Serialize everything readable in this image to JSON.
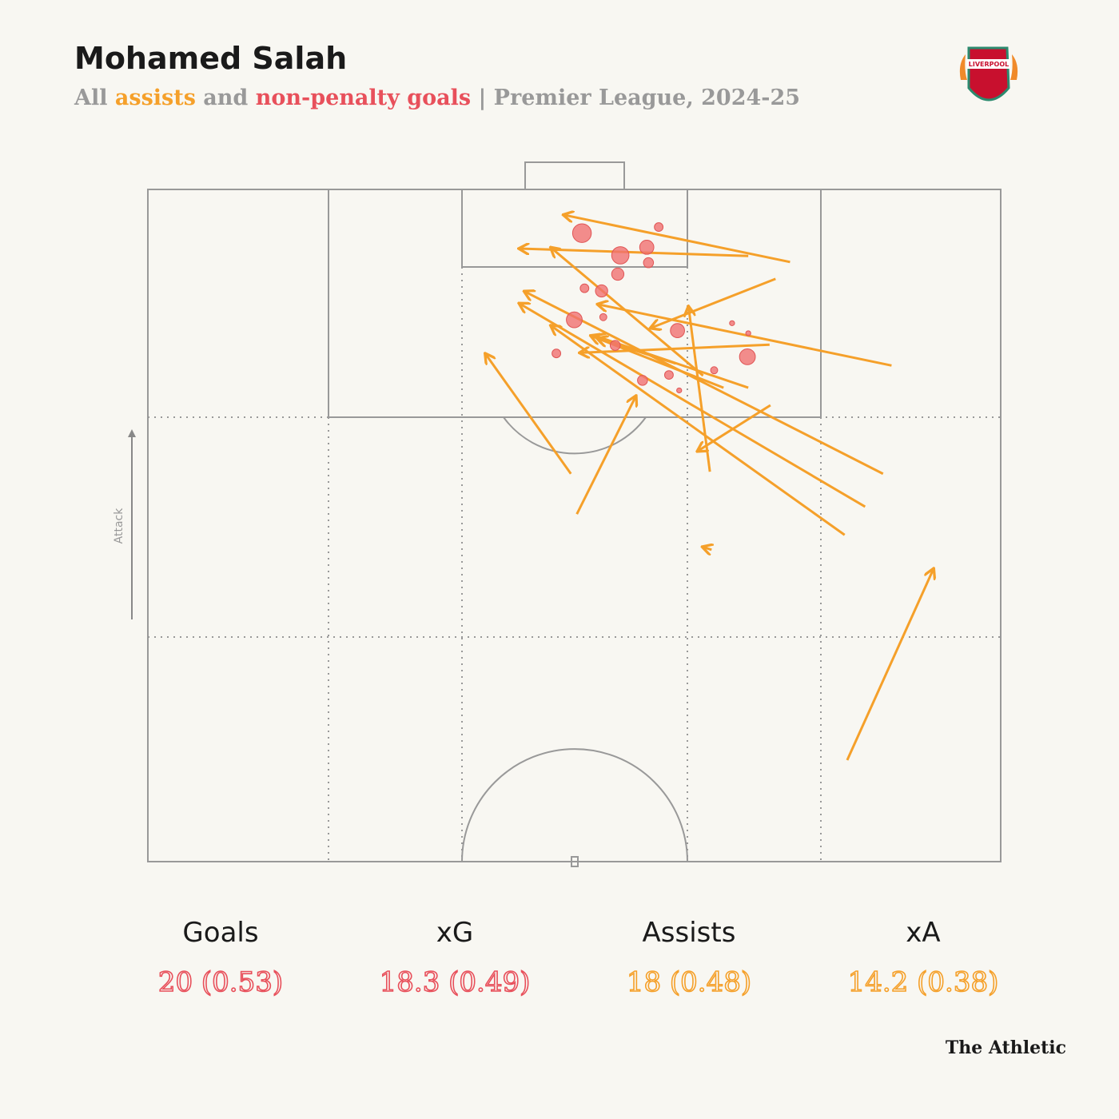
{
  "title": "Mohamed Salah",
  "subtitle": [
    "All ",
    "assists",
    " and ",
    "non-penalty goals",
    " | Premier League, 2024-25"
  ],
  "crest": "LIVERPOOL",
  "attack_label": "Attack",
  "brand": "The Athletic",
  "stats": [
    {
      "label": "Goals",
      "value": "20 (0.53)",
      "color": "#e8505b"
    },
    {
      "label": "xG",
      "value": "18.3 (0.49)",
      "color": "#e8505b"
    },
    {
      "label": "Assists",
      "value": "18 (0.48)",
      "color": "#f5a02a"
    },
    {
      "label": "xA",
      "value": "14.2 (0.38)",
      "color": "#f5a02a"
    }
  ],
  "chart_data": {
    "type": "pitch",
    "xlim": [
      0,
      100
    ],
    "ylim": [
      0,
      100
    ],
    "goal_color": "#f07070",
    "assist_color": "#f5a02a",
    "goals": [
      {
        "x": 50.9,
        "y": 6.5,
        "xg": 0.7
      },
      {
        "x": 59.9,
        "y": 5.6,
        "xg": 0.15
      },
      {
        "x": 58.5,
        "y": 8.6,
        "xg": 0.4
      },
      {
        "x": 55.4,
        "y": 9.8,
        "xg": 0.6
      },
      {
        "x": 58.7,
        "y": 10.9,
        "xg": 0.2
      },
      {
        "x": 55.1,
        "y": 12.6,
        "xg": 0.3
      },
      {
        "x": 51.2,
        "y": 14.7,
        "xg": 0.15
      },
      {
        "x": 53.2,
        "y": 15.1,
        "xg": 0.3
      },
      {
        "x": 50.0,
        "y": 19.4,
        "xg": 0.5
      },
      {
        "x": 53.4,
        "y": 19.0,
        "xg": 0.1
      },
      {
        "x": 68.5,
        "y": 19.9,
        "xg": 0.05
      },
      {
        "x": 70.4,
        "y": 21.4,
        "xg": 0.05
      },
      {
        "x": 62.1,
        "y": 21.0,
        "xg": 0.4
      },
      {
        "x": 54.8,
        "y": 23.2,
        "xg": 0.2
      },
      {
        "x": 47.9,
        "y": 24.4,
        "xg": 0.15
      },
      {
        "x": 70.3,
        "y": 24.9,
        "xg": 0.5
      },
      {
        "x": 66.4,
        "y": 26.9,
        "xg": 0.1
      },
      {
        "x": 61.1,
        "y": 27.6,
        "xg": 0.15
      },
      {
        "x": 58.0,
        "y": 28.4,
        "xg": 0.2
      },
      {
        "x": 62.3,
        "y": 29.9,
        "xg": 0.05
      }
    ],
    "assists": [
      {
        "x1": 75.3,
        "y1": 10.8,
        "x2": 48.8,
        "y2": 3.8
      },
      {
        "x1": 70.4,
        "y1": 9.9,
        "x2": 43.6,
        "y2": 8.8
      },
      {
        "x1": 73.6,
        "y1": 13.3,
        "x2": 59.0,
        "y2": 20.6
      },
      {
        "x1": 87.2,
        "y1": 26.2,
        "x2": 52.8,
        "y2": 17.1
      },
      {
        "x1": 72.9,
        "y1": 23.1,
        "x2": 50.7,
        "y2": 24.3
      },
      {
        "x1": 65.9,
        "y1": 42.0,
        "x2": 63.4,
        "y2": 17.5
      },
      {
        "x1": 73.0,
        "y1": 32.1,
        "x2": 64.5,
        "y2": 38.9
      },
      {
        "x1": 86.2,
        "y1": 42.3,
        "x2": 44.2,
        "y2": 15.2
      },
      {
        "x1": 84.1,
        "y1": 47.2,
        "x2": 43.6,
        "y2": 17.0
      },
      {
        "x1": 81.7,
        "y1": 51.4,
        "x2": 47.3,
        "y2": 20.3
      },
      {
        "x1": 70.4,
        "y1": 29.5,
        "x2": 52.5,
        "y2": 21.8
      },
      {
        "x1": 49.6,
        "y1": 42.3,
        "x2": 39.6,
        "y2": 24.5
      },
      {
        "x1": 50.3,
        "y1": 48.3,
        "x2": 57.2,
        "y2": 30.8
      },
      {
        "x1": 82.0,
        "y1": 84.9,
        "x2": 92.1,
        "y2": 56.5
      },
      {
        "x1": 66.1,
        "y1": 53.6,
        "x2": 65.1,
        "y2": 53.2
      },
      {
        "x1": 61.9,
        "y1": 25.9,
        "x2": 52.8,
        "y2": 22.2
      },
      {
        "x1": 65.1,
        "y1": 27.7,
        "x2": 47.3,
        "y2": 8.7
      },
      {
        "x1": 67.5,
        "y1": 29.5,
        "x2": 52.0,
        "y2": 21.8
      }
    ]
  }
}
